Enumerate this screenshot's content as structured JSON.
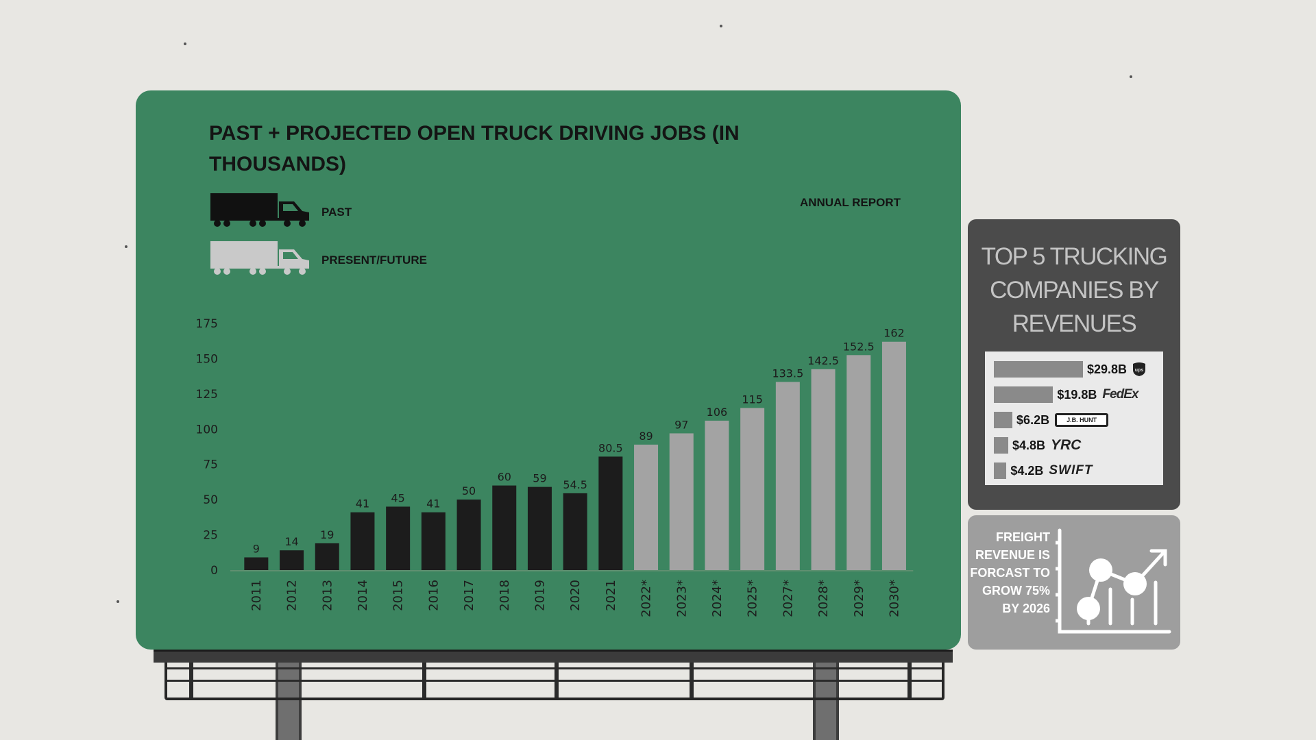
{
  "chart_data": {
    "type": "bar",
    "title": "PAST + PROJECTED OPEN TRUCK DRIVING JOBS (IN THOUSANDS)",
    "annotation": "ANNUAL REPORT",
    "categories": [
      "2011",
      "2012",
      "2013",
      "2014",
      "2015",
      "2016",
      "2017",
      "2018",
      "2019",
      "2020",
      "2021",
      "2022*",
      "2023*",
      "2024*",
      "2025*",
      "2027*",
      "2028*",
      "2029*",
      "2030*"
    ],
    "values": [
      9,
      14,
      19,
      41,
      45,
      41,
      50,
      60,
      59,
      54.5,
      80.5,
      89,
      97,
      106,
      115,
      133.5,
      142.5,
      152.5,
      162
    ],
    "value_labels": [
      "9",
      "14",
      "19",
      "41",
      "45",
      "41",
      "50",
      "60",
      "59",
      "54.5",
      "80.5",
      "89",
      "97",
      "106",
      "115",
      "133.5",
      "142.5",
      "152.5",
      "162"
    ],
    "series": [
      {
        "name": "PAST",
        "categories": [
          "2011",
          "2012",
          "2013",
          "2014",
          "2015",
          "2016",
          "2017",
          "2018",
          "2019",
          "2020",
          "2021"
        ],
        "color": "#1c1c1c"
      },
      {
        "name": "PRESENT/FUTURE",
        "categories": [
          "2022*",
          "2023*",
          "2024*",
          "2025*",
          "2027*",
          "2028*",
          "2029*",
          "2030*"
        ],
        "color": "#a3a3a3"
      }
    ],
    "past_count": 11,
    "yticks": [
      0,
      25,
      50,
      75,
      100,
      125,
      150,
      175
    ],
    "ylim": [
      0,
      175
    ],
    "xlabel": "",
    "ylabel": "",
    "grid": false,
    "legend": "top-left"
  },
  "legend": {
    "past_label": "PAST",
    "future_label": "PRESENT/FUTURE",
    "past_icon": "truck-black-icon",
    "future_icon": "truck-gray-icon"
  },
  "revenue_panel": {
    "title": "TOP 5 TRUCKING COMPANIES BY REVENUES",
    "companies": [
      {
        "value_label": "$29.8B",
        "value": 29.8,
        "logo_text": "ups",
        "logo": "ups-shield-logo"
      },
      {
        "value_label": "$19.8B",
        "value": 19.8,
        "logo_text": "FedEx",
        "logo": "fedex-logo"
      },
      {
        "value_label": "$6.2B",
        "value": 6.2,
        "logo_text": "J.B. HUNT",
        "logo": "jb-hunt-logo"
      },
      {
        "value_label": "$4.8B",
        "value": 4.8,
        "logo_text": "YRC",
        "logo": "yrc-logo"
      },
      {
        "value_label": "$4.2B",
        "value": 4.2,
        "logo_text": "SWIFT",
        "logo": "swift-logo"
      }
    ]
  },
  "growth_panel": {
    "text": "FREIGHT REVENUE IS FORCAST TO GROW 75% BY 2026",
    "icon": "growth-chart-icon"
  },
  "colors": {
    "board": "#3c8560",
    "past_bar": "#1c1c1c",
    "future_bar": "#a3a3a3",
    "panel_dark": "#4b4b4b",
    "panel_light": "#9e9e9e",
    "background": "#e8e7e3"
  }
}
